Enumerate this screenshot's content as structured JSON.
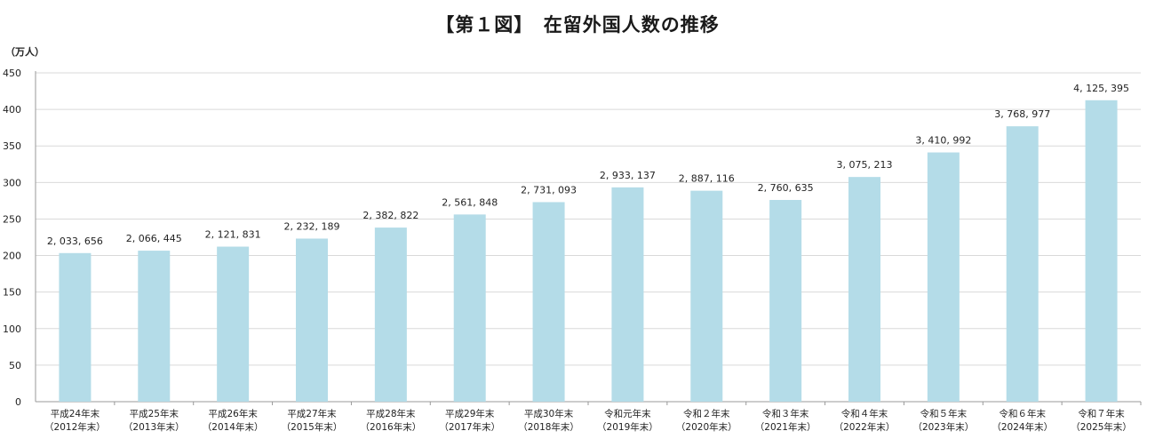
{
  "chart_data": {
    "type": "bar",
    "title": "【第１図】　在留外国人数の推移",
    "ylabel": "（万人）",
    "xlabel": "",
    "ylim": [
      0,
      450
    ],
    "yticks": [
      0,
      50,
      100,
      150,
      200,
      250,
      300,
      350,
      400,
      450
    ],
    "grid": true,
    "bar_color": "#b4dce8",
    "categories": [
      [
        "平成24年末",
        "（2012年末）"
      ],
      [
        "平成25年末",
        "（2013年末）"
      ],
      [
        "平成26年末",
        "（2014年末）"
      ],
      [
        "平成27年末",
        "（2015年末）"
      ],
      [
        "平成28年末",
        "（2016年末）"
      ],
      [
        "平成29年末",
        "（2017年末）"
      ],
      [
        "平成30年末",
        "（2018年末）"
      ],
      [
        "令和元年末",
        "（2019年末）"
      ],
      [
        "令和２年末",
        "（2020年末）"
      ],
      [
        "令和３年末",
        "（2021年末）"
      ],
      [
        "令和４年末",
        "（2022年末）"
      ],
      [
        "令和５年末",
        "（2023年末）"
      ],
      [
        "令和６年末",
        "（2024年末）"
      ],
      [
        "令和７年末",
        "（2025年末）"
      ]
    ],
    "values": [
      203.3656,
      206.6445,
      212.1831,
      223.2189,
      238.2822,
      256.1848,
      273.1093,
      293.3137,
      288.7116,
      276.0635,
      307.5213,
      341.0992,
      376.8977,
      412.5395
    ],
    "data_labels": [
      "2, 033, 656",
      "2, 066, 445",
      "2, 121, 831",
      "2, 232, 189",
      "2, 382, 822",
      "2, 561, 848",
      "2, 731, 093",
      "2, 933, 137",
      "2, 887, 116",
      "2, 760, 635",
      "3, 075, 213",
      "3, 410, 992",
      "3, 768, 977",
      "4, 125, 395"
    ]
  }
}
